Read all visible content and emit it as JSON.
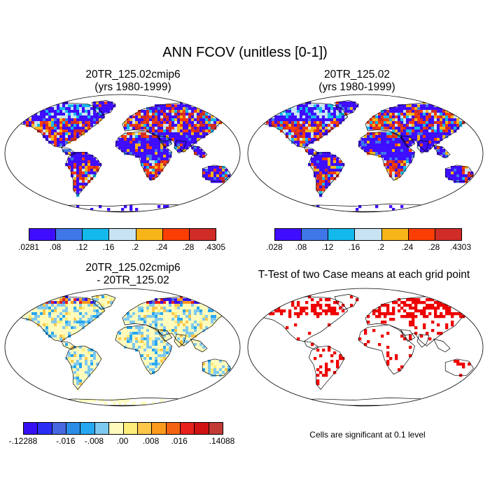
{
  "title": "ANN FCOV (unitless [0-1])",
  "panels": {
    "top_left": {
      "title_line1": "20TR_125.02cmip6",
      "title_line2": "(yrs 1980-1999)"
    },
    "top_right": {
      "title_line1": "20TR_125.02",
      "title_line2": "(yrs 1980-1999)"
    },
    "bottom_left": {
      "title_line1": "20TR_125.02cmip6",
      "title_line2": "- 20TR_125.02"
    },
    "bottom_right": {
      "title": "T-Test of two Case means at each grid point",
      "note": "Cells are significant at 0.1 level"
    }
  },
  "colorbars": {
    "top_left": {
      "colors": [
        "#3f0dff",
        "#3f76e8",
        "#14b9ec",
        "#c8e4f2",
        "#f8b519",
        "#fa3e04",
        "#d02c28"
      ],
      "labels": [
        ".0281",
        ".08",
        ".12",
        ".16",
        ".2",
        ".24",
        ".28",
        ".4305"
      ]
    },
    "top_right": {
      "colors": [
        "#3f0dff",
        "#3f76e8",
        "#14b9ec",
        "#c8e4f2",
        "#f8b519",
        "#fa3e04",
        "#d02c28"
      ],
      "labels": [
        ".028",
        ".08",
        ".12",
        ".16",
        ".2",
        ".24",
        ".28",
        ".4303"
      ]
    },
    "bottom_left": {
      "colors": [
        "#3610f2",
        "#2a2ef5",
        "#4768e0",
        "#2a8ee8",
        "#27a6f2",
        "#7ec9ef",
        "#fefbbd",
        "#feed7a",
        "#fdc74a",
        "#fb9a1c",
        "#f46312",
        "#e8211d",
        "#d11212",
        "#c23a36"
      ],
      "labels": [
        "-.12288",
        "-.016",
        "-.008",
        ".00",
        ".008",
        ".016",
        ".14088"
      ],
      "label_boundaries": [
        0,
        3,
        5,
        7,
        9,
        11,
        14
      ]
    }
  },
  "legend_colors": {
    "ocean": "#ffffff",
    "land_mean_dominant": "#3f0dff",
    "land_diff_dominant": "#fefbbd",
    "significant": "#ee0000",
    "coast": "#000000"
  }
}
